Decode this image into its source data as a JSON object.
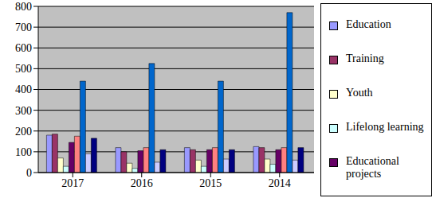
{
  "chart_data": {
    "type": "bar",
    "categories": [
      "2017",
      "2016",
      "2015",
      "2014"
    ],
    "series": [
      {
        "name": "Education",
        "color": "#9999ff",
        "values": [
          180,
          120,
          120,
          125
        ]
      },
      {
        "name": "Training",
        "color": "#993366",
        "values": [
          185,
          100,
          110,
          120
        ]
      },
      {
        "name": "Youth",
        "color": "#ffffcc",
        "values": [
          70,
          45,
          60,
          65
        ]
      },
      {
        "name": "Lifelong learning",
        "color": "#ccffff",
        "values": [
          30,
          20,
          30,
          40
        ]
      },
      {
        "name": "Educational projects",
        "color": "#660066",
        "values": [
          145,
          105,
          110,
          110
        ]
      },
      {
        "color": "#ff8080",
        "values": [
          175,
          120,
          120,
          120
        ]
      },
      {
        "color": "#0066cc",
        "values": [
          440,
          525,
          440,
          770
        ]
      },
      {
        "color": "#ccccff",
        "values": [
          90,
          50,
          65,
          60
        ]
      },
      {
        "color": "#000080",
        "values": [
          165,
          110,
          110,
          120
        ]
      }
    ],
    "ylim": [
      0,
      800
    ],
    "yticks": [
      0,
      100,
      200,
      300,
      400,
      500,
      600,
      700,
      800
    ],
    "grid": true,
    "legend": "right"
  }
}
